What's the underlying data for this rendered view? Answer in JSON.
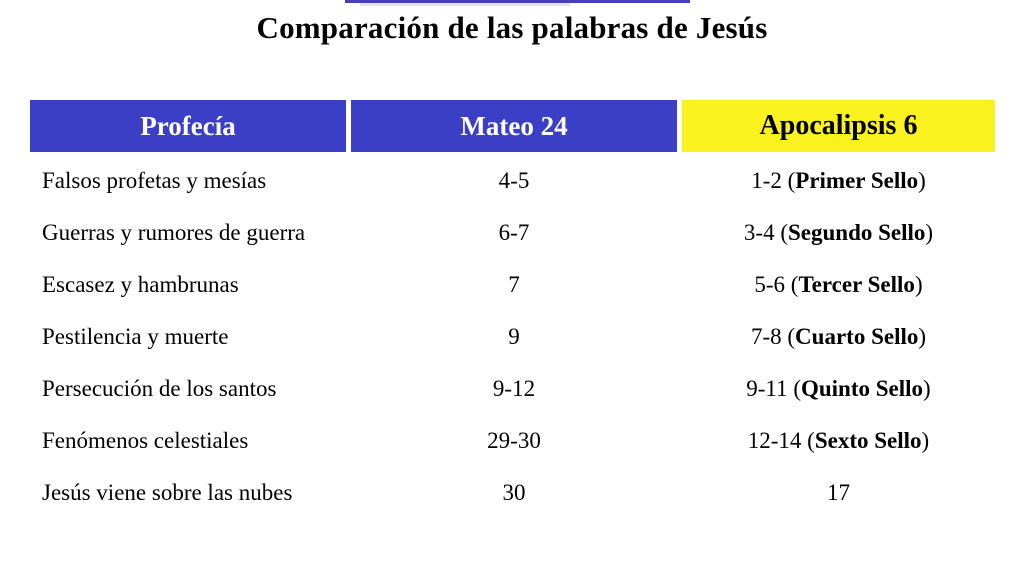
{
  "title": "Comparación de las palabras de Jesús",
  "colors": {
    "header_blue": "#3b3fc6",
    "header_yellow": "#faf21e",
    "row_odd_lavender": "#cbcbe8",
    "row_even_lavender": "#e8e8f5",
    "row_odd_yellow": "#f5f5b0",
    "row_even_yellow": "#fbfbe8",
    "stripe_blue": "#4340b8",
    "stripe_light": "#e4e1f5",
    "header_text_light": "#ffffff",
    "text": "#000000",
    "background": "#ffffff"
  },
  "table": {
    "headers": [
      "Profecía",
      "Mateo 24",
      "Apocalipsis 6"
    ],
    "rows": [
      {
        "prophecy": "Falsos profetas y mesías",
        "mateo": "4-5",
        "apoc_prefix": "1-2 (",
        "apoc_bold": "Primer Sello",
        "apoc_suffix": ")",
        "bold": false
      },
      {
        "prophecy": "Guerras y rumores de guerra",
        "mateo": "6-7",
        "apoc_prefix": "3-4 (",
        "apoc_bold": "Segundo Sello",
        "apoc_suffix": ")",
        "bold": false
      },
      {
        "prophecy": "Escasez y hambrunas",
        "mateo": "7",
        "apoc_prefix": "5-6 (",
        "apoc_bold": "Tercer Sello",
        "apoc_suffix": ")",
        "bold": false
      },
      {
        "prophecy": "Pestilencia y muerte",
        "mateo": "9",
        "apoc_prefix": "7-8 (",
        "apoc_bold": "Cuarto Sello",
        "apoc_suffix": ")",
        "bold": false
      },
      {
        "prophecy": "Persecución de los santos",
        "mateo": "9-12",
        "apoc_prefix": "9-11 (",
        "apoc_bold": "Quinto Sello",
        "apoc_suffix": ")",
        "bold": false
      },
      {
        "prophecy": "Fenómenos celestiales",
        "mateo": "29-30",
        "apoc_prefix": "12-14 (",
        "apoc_bold": "Sexto Sello",
        "apoc_suffix": ")",
        "bold": false
      },
      {
        "prophecy": "Jesús viene sobre las nubes",
        "mateo": "30",
        "apoc_prefix": "17",
        "apoc_bold": "",
        "apoc_suffix": "",
        "bold": true
      }
    ]
  }
}
